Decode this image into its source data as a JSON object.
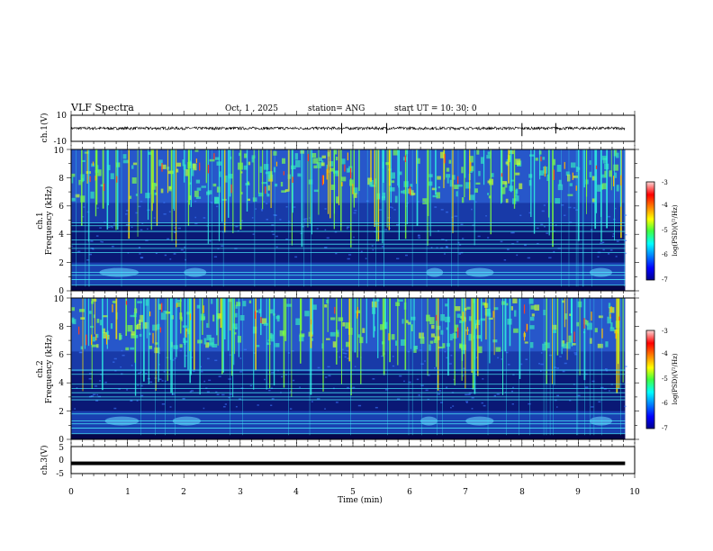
{
  "header": {
    "title": "VLF Spectra",
    "date": "Oct. 1 , 2025",
    "station": "station= ANG",
    "start": "start  UT =   10: 30: 0"
  },
  "chart_data": [
    {
      "type": "line",
      "name": "ch1-waveform",
      "ylabel": "ch.1(V)",
      "ylim": [
        -10,
        10
      ],
      "yticks": [
        "10",
        "-10"
      ],
      "baseline": 0,
      "spikes_min": [
        4.8,
        5.6,
        8.0,
        8.6
      ]
    },
    {
      "type": "heatmap",
      "name": "ch1-spectrogram",
      "ylabel": "Frequency (kHz)",
      "chlabel": "ch.1",
      "ylim": [
        0,
        10
      ],
      "yticks": [
        "0",
        "2",
        "4",
        "6",
        "8",
        "10"
      ],
      "xlim": [
        0,
        9.83
      ],
      "colorbar": {
        "label": "log(PSD)(V²/Hz)",
        "ticks": [
          "-3",
          "-4",
          "-5",
          "-6",
          "-7"
        ],
        "range": [
          -7,
          -3
        ]
      },
      "lines_khz": [
        0.4,
        0.8,
        1.1,
        1.3,
        1.8,
        2.7,
        3.0,
        3.3,
        3.6,
        4.2,
        4.6,
        4.8
      ],
      "bursts_min": [
        [
          0.5,
          1.2
        ],
        [
          2.0,
          2.4
        ],
        [
          6.3,
          6.6
        ],
        [
          7.0,
          7.5
        ],
        [
          9.2,
          9.6
        ]
      ]
    },
    {
      "type": "heatmap",
      "name": "ch2-spectrogram",
      "ylabel": "Frequency (kHz)",
      "chlabel": "ch.2",
      "ylim": [
        0,
        10
      ],
      "yticks": [
        "0",
        "2",
        "4",
        "6",
        "8",
        "10"
      ],
      "xlim": [
        0,
        9.83
      ],
      "colorbar": {
        "label": "log(PSD)(V²/Hz)",
        "ticks": [
          "-3",
          "-4",
          "-5",
          "-6",
          "-7"
        ],
        "range": [
          -7,
          -3
        ]
      },
      "lines_khz": [
        0.4,
        0.8,
        1.1,
        1.3,
        1.8,
        2.8,
        3.0,
        3.3,
        3.6,
        3.9,
        4.6,
        4.9
      ],
      "bursts_min": [
        [
          0.6,
          1.2
        ],
        [
          1.8,
          2.3
        ],
        [
          6.2,
          6.5
        ],
        [
          7.0,
          7.5
        ],
        [
          9.2,
          9.6
        ]
      ]
    },
    {
      "type": "line",
      "name": "ch3-waveform",
      "ylabel": "ch.3(V)",
      "ylim": [
        -5,
        5
      ],
      "yticks": [
        "5",
        "0",
        "-5"
      ],
      "baseline": -1.2
    }
  ],
  "xaxis": {
    "label": "Time  (min)",
    "ticks": [
      "0",
      "1",
      "2",
      "3",
      "4",
      "5",
      "6",
      "7",
      "8",
      "9",
      "10"
    ],
    "range": [
      0,
      10
    ]
  }
}
